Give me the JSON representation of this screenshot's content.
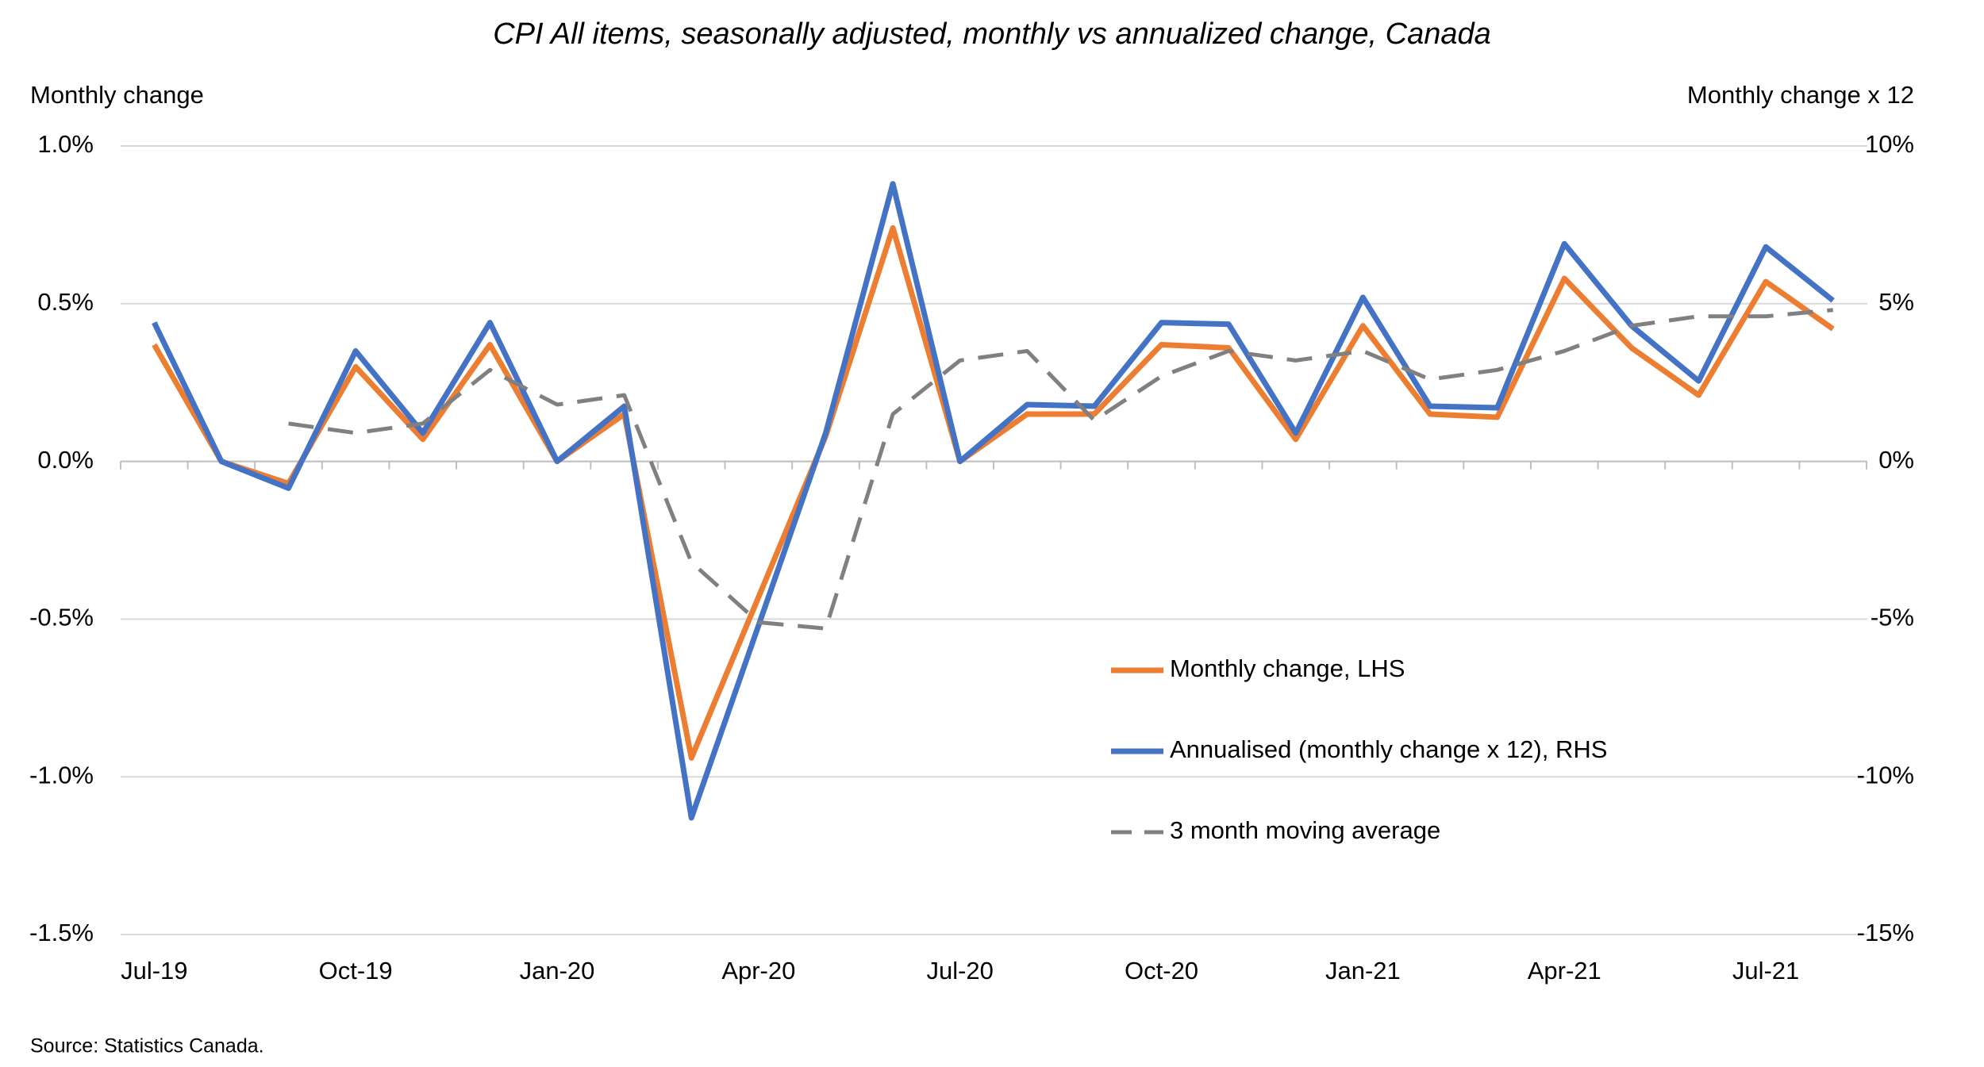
{
  "chart_data": {
    "type": "line",
    "title": "CPI All items, seasonally adjusted, monthly vs annualized change, Canada",
    "y_label": "Monthly change",
    "y2_label": "Monthly change x 12",
    "source": "Source: Statistics Canada.",
    "categories": [
      "Jul-19",
      null,
      null,
      "Oct-19",
      null,
      null,
      "Jan-20",
      null,
      null,
      "Apr-20",
      null,
      null,
      "Jul-20",
      null,
      null,
      "Oct-20",
      null,
      null,
      "Jan-21",
      null,
      null,
      "Apr-21",
      null,
      null,
      "Jul-21",
      null
    ],
    "series": [
      {
        "name": "Monthly change, LHS",
        "color": "#ed7d31",
        "axis": "y",
        "dashed": false,
        "values": [
          0.37,
          0.0,
          -0.07,
          0.3,
          0.07,
          0.37,
          0.0,
          0.15,
          -0.94,
          -0.43,
          0.08,
          0.74,
          0.0,
          0.15,
          0.15,
          0.37,
          0.36,
          0.07,
          0.43,
          0.15,
          0.14,
          0.58,
          0.36,
          0.21,
          0.57,
          0.42
        ]
      },
      {
        "name": "Annualised (monthly change x 12), RHS",
        "color": "#4472c4",
        "axis": "y2",
        "dashed": false,
        "values": [
          4.4,
          0.0,
          -0.85,
          3.5,
          0.9,
          4.4,
          0.0,
          1.75,
          -11.3,
          -5.2,
          0.9,
          8.8,
          0.0,
          1.8,
          1.75,
          4.4,
          4.35,
          0.9,
          5.2,
          1.75,
          1.7,
          6.9,
          4.3,
          2.55,
          6.8,
          5.1
        ]
      },
      {
        "name": "3 month moving average",
        "color": "#808080",
        "axis": "y",
        "dashed": true,
        "values": [
          null,
          null,
          0.12,
          0.09,
          0.12,
          0.29,
          0.18,
          0.21,
          -0.32,
          -0.51,
          -0.53,
          0.15,
          0.32,
          0.35,
          0.13,
          0.27,
          0.35,
          0.32,
          0.35,
          0.26,
          0.29,
          0.35,
          0.43,
          0.46,
          0.46,
          0.48
        ]
      }
    ],
    "ylim": [
      -1.5,
      1.0
    ],
    "yticks": [
      {
        "value": 1.0,
        "label": "1.0%"
      },
      {
        "value": 0.5,
        "label": "0.5%"
      },
      {
        "value": 0.0,
        "label": "0.0%"
      },
      {
        "value": -0.5,
        "label": "-0.5%"
      },
      {
        "value": -1.0,
        "label": "-1.0%"
      },
      {
        "value": -1.5,
        "label": "-1.5%"
      }
    ],
    "y2lim": [
      -15,
      10
    ],
    "y2ticks": [
      {
        "value": 10,
        "label": "10%"
      },
      {
        "value": 5,
        "label": "5%"
      },
      {
        "value": 0,
        "label": "0%"
      },
      {
        "value": -5,
        "label": "-5%"
      },
      {
        "value": -10,
        "label": "-10%"
      },
      {
        "value": -15,
        "label": "-15%"
      }
    ],
    "grid": true
  }
}
